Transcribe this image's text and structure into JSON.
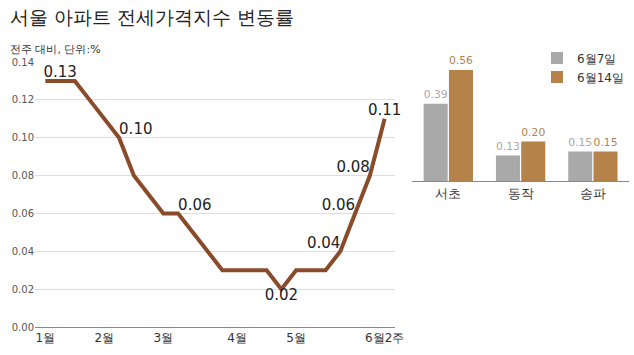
{
  "chart_data": [
    {
      "type": "line",
      "title": "서울 아파트 전세가격지수 변동률",
      "subtitle": "전주 대비, 단위:%",
      "categories": [
        "1월",
        null,
        null,
        null,
        "2월",
        null,
        null,
        null,
        "3월",
        null,
        null,
        null,
        null,
        "4월",
        null,
        null,
        null,
        "5월",
        null,
        null,
        null,
        null,
        null,
        "6월2주"
      ],
      "values": [
        0.13,
        0.13,
        0.13,
        0.12,
        0.11,
        0.1,
        0.08,
        0.07,
        0.06,
        0.06,
        0.05,
        0.04,
        0.03,
        0.03,
        0.03,
        0.03,
        0.02,
        0.03,
        0.03,
        0.03,
        0.04,
        0.06,
        0.08,
        0.11
      ],
      "value_labels": [
        null,
        "0.13",
        null,
        null,
        null,
        "0.10",
        null,
        null,
        null,
        "0.06",
        null,
        null,
        null,
        null,
        null,
        null,
        "0.02",
        null,
        null,
        null,
        "0.04",
        "0.06",
        "0.08",
        "0.11"
      ],
      "color": "#8a4b2a",
      "ylim": [
        0,
        0.14
      ],
      "yticks": [
        {
          "value": 0,
          "label": "0.00"
        },
        {
          "value": 0.02,
          "label": "0.02"
        },
        {
          "value": 0.04,
          "label": "0.04"
        },
        {
          "value": 0.06,
          "label": "0.06"
        },
        {
          "value": 0.08,
          "label": "0.08"
        },
        {
          "value": 0.1,
          "label": "0.10"
        },
        {
          "value": 0.12,
          "label": "0.12"
        },
        {
          "value": 0.14,
          "label": "0.14"
        }
      ],
      "grid": true,
      "data_labels": true
    },
    {
      "type": "bar",
      "categories": [
        "서초",
        "동작",
        "송파"
      ],
      "series": [
        {
          "name": "6월7일",
          "color": "#a9a9a9",
          "values": [
            0.39,
            0.13,
            0.15
          ],
          "value_labels": [
            "0.39",
            "0.13",
            "0.15"
          ]
        },
        {
          "name": "6월14일",
          "color": "#b5834a",
          "values": [
            0.56,
            0.2,
            0.15
          ],
          "value_labels": [
            "0.56",
            "0.20",
            "0.15"
          ]
        }
      ],
      "ylim": [
        0,
        0.6
      ],
      "data_labels": true,
      "legend": "top-right",
      "tick_labels": "x"
    }
  ]
}
